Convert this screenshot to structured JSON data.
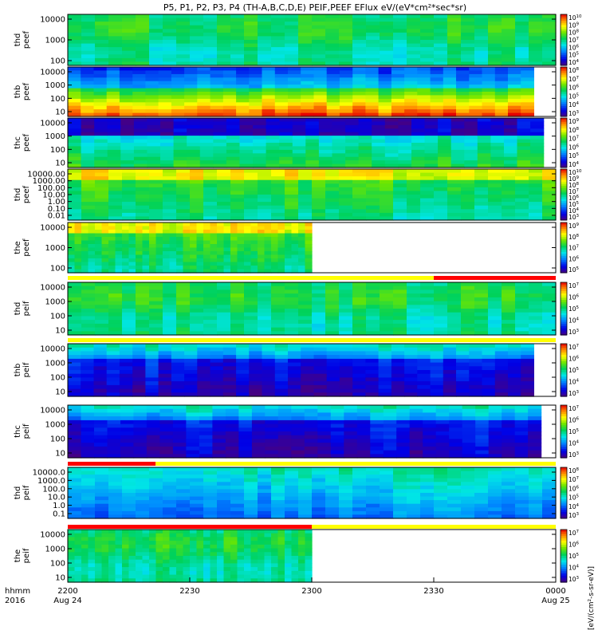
{
  "title": "P5, P1, P2, P3, P4 (TH-A,B,C,D,E) PEIF,PEEF EFlux eV/(eV*cm²*sec*sr)",
  "colorbar_unit_label": "[eV/(cm²-s-sr-eV)]",
  "time_axis": {
    "row_label_top": "hhmm",
    "row_label_bottom": "2016",
    "ticks": [
      {
        "label": "2200",
        "sub": "Aug 24"
      },
      {
        "label": "2230",
        "sub": ""
      },
      {
        "label": "2300",
        "sub": ""
      },
      {
        "label": "2330",
        "sub": ""
      },
      {
        "label": "0000",
        "sub": "Aug 25"
      }
    ]
  },
  "chart_data": {
    "type": "heatmap",
    "x_range_hhmm": [
      "2200",
      "0000"
    ],
    "x_tick_labels": [
      "2200",
      "2230",
      "2300",
      "2330",
      "0000"
    ],
    "colormap": "rainbow (blue-green-yellow-red)",
    "panels": [
      {
        "id": "thd-peef-1",
        "probe": "thd",
        "type": "peef",
        "ylabel": [
          "thd",
          "peef"
        ],
        "yticks": [
          "10000",
          "1000",
          "100"
        ],
        "log": true,
        "colorbar_ticks": [
          "10^10",
          "10^9",
          "10^8",
          "10^7",
          "10^6",
          "10^5",
          "10^4"
        ],
        "data_end": 1.0,
        "base": "green"
      },
      {
        "id": "thb-peef",
        "probe": "thb",
        "type": "peef",
        "ylabel": [
          "thb",
          "peef"
        ],
        "yticks": [
          "10000",
          "1000",
          "100",
          "10"
        ],
        "log": true,
        "colorbar_ticks": [
          "10^8",
          "10^7",
          "10^6",
          "10^5",
          "10^4",
          "10^3"
        ],
        "data_end": 0.955,
        "base": "blue-top red-bottom"
      },
      {
        "id": "thc-peef",
        "probe": "thc",
        "type": "peef",
        "ylabel": [
          "thc",
          "peef"
        ],
        "yticks": [
          "10000",
          "1000",
          "100",
          "10"
        ],
        "log": true,
        "colorbar_ticks": [
          "10^9",
          "10^8",
          "10^7",
          "10^6",
          "10^5",
          "10^4"
        ],
        "data_end": 0.975,
        "base": "purple-top green-bottom"
      },
      {
        "id": "thd-peef-2",
        "probe": "thd",
        "type": "peef",
        "ylabel": [
          "thd",
          "peef"
        ],
        "yticks": [
          "10000.00",
          "1000.00",
          "100.00",
          "10.00",
          "1.00",
          "0.10",
          "0.01"
        ],
        "log": true,
        "colorbar_ticks": [
          "10^10",
          "10^9",
          "10^8",
          "10^7",
          "10^6",
          "10^5",
          "10^4",
          "10^3"
        ],
        "data_end": 1.0,
        "base": "yellow-top green-bottom"
      },
      {
        "id": "the-peef",
        "probe": "the",
        "type": "peef",
        "ylabel": [
          "the",
          "peef"
        ],
        "yticks": [
          "10000",
          "1000",
          "100"
        ],
        "log": true,
        "colorbar_ticks": [
          "10^9",
          "10^8",
          "10^7",
          "10^6",
          "10^5"
        ],
        "data_end": 0.5,
        "base": "yellow-top green-bottom"
      },
      {
        "id": "thd-peif",
        "probe": "thd",
        "type": "peif",
        "ylabel": [
          "thd",
          "peif"
        ],
        "yticks": [
          "10000",
          "1000",
          "100",
          "10"
        ],
        "log": true,
        "colorbar_ticks": [
          "10^7",
          "10^6",
          "10^5",
          "10^4",
          "10^3"
        ],
        "data_end": 1.0,
        "base": "green"
      },
      {
        "id": "thb-peif",
        "probe": "thb",
        "type": "peif",
        "ylabel": [
          "thb",
          "peif"
        ],
        "yticks": [
          "10000",
          "1000",
          "100",
          "10"
        ],
        "log": true,
        "colorbar_ticks": [
          "10^7",
          "10^6",
          "10^5",
          "10^4",
          "10^3"
        ],
        "data_end": 0.955,
        "base": "green-top purple-bottom"
      },
      {
        "id": "thc-peif",
        "probe": "thc",
        "type": "peif",
        "ylabel": [
          "thc",
          "peif"
        ],
        "yticks": [
          "10000",
          "1000",
          "100",
          "10"
        ],
        "log": true,
        "colorbar_ticks": [
          "10^7",
          "10^6",
          "10^5",
          "10^4",
          "10^3"
        ],
        "data_end": 0.97,
        "base": "green-top purple-bottom"
      },
      {
        "id": "thd-peif-2",
        "probe": "thd",
        "type": "peif",
        "ylabel": [
          "thd",
          "peif"
        ],
        "yticks": [
          "10000.0",
          "1000.0",
          "100.0",
          "10.0",
          "1.0",
          "0.1"
        ],
        "log": true,
        "colorbar_ticks": [
          "10^8",
          "10^7",
          "10^6",
          "10^5",
          "10^4",
          "10^3"
        ],
        "data_end": 1.0,
        "base": "green-top blue-bottom"
      },
      {
        "id": "the-peif",
        "probe": "the",
        "type": "peif",
        "ylabel": [
          "the",
          "peif"
        ],
        "yticks": [
          "10000",
          "1000",
          "100",
          "10"
        ],
        "log": true,
        "colorbar_ticks": [
          "10^7",
          "10^6",
          "10^5",
          "10^4",
          "10^3"
        ],
        "data_end": 0.5,
        "base": "green"
      }
    ],
    "status_bars": [
      {
        "after_panel": "the-peef",
        "segments": [
          {
            "from": 0.0,
            "to": 0.75,
            "color": "#ffff00"
          },
          {
            "from": 0.75,
            "to": 1.0,
            "color": "#ff0000"
          }
        ]
      },
      {
        "after_panel": "thd-peif",
        "segments": [
          {
            "from": 0.0,
            "to": 1.0,
            "color": "#ffff00"
          }
        ]
      },
      {
        "after_panel": "thc-peif",
        "segments": [
          {
            "from": 0.0,
            "to": 0.18,
            "color": "#ff0000"
          },
          {
            "from": 0.18,
            "to": 1.0,
            "color": "#ffff00"
          }
        ]
      },
      {
        "after_panel": "thd-peif-2",
        "segments": [
          {
            "from": 0.0,
            "to": 0.5,
            "color": "#ff0000"
          },
          {
            "from": 0.5,
            "to": 1.0,
            "color": "#ffff00"
          }
        ]
      }
    ]
  }
}
